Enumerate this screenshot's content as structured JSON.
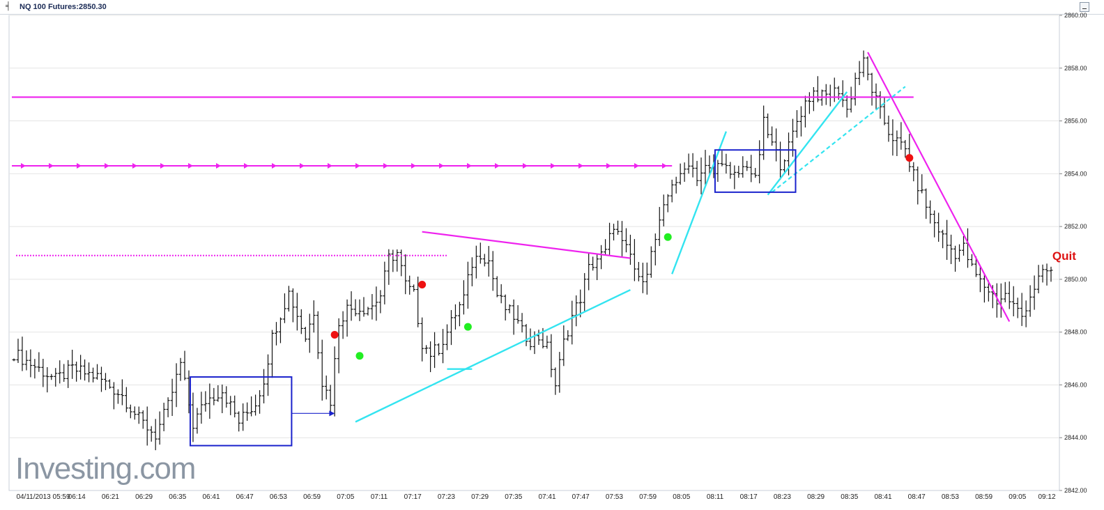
{
  "header": {
    "title": "NQ 100 Futures:2850.30"
  },
  "watermark": "Investing.com",
  "chart_data": {
    "type": "ohlc-bar",
    "title": "NQ 100 Futures:2850.30",
    "x_tick_labels": [
      "04/11/2013 05:59",
      "06:14",
      "06:21",
      "06:29",
      "06:35",
      "06:41",
      "06:47",
      "06:53",
      "06:59",
      "07:05",
      "07:11",
      "07:17",
      "07:23",
      "07:29",
      "07:35",
      "07:41",
      "07:47",
      "07:53",
      "07:59",
      "08:05",
      "08:11",
      "08:17",
      "08:23",
      "08:29",
      "08:35",
      "08:41",
      "08:47",
      "08:53",
      "08:59",
      "09:05",
      "09:12"
    ],
    "y_ticks": [
      2842,
      2844,
      2846,
      2848,
      2850,
      2852,
      2854,
      2856,
      2858,
      2860
    ],
    "y_tick_labels": [
      "2842.00",
      "2844.00",
      "2846.00",
      "2848.00",
      "2850.00",
      "2852.00",
      "2854.00",
      "2856.00",
      "2858.00",
      "2860.00"
    ],
    "ylim": [
      2842,
      2860
    ],
    "bar_count": 250,
    "grid": "horizontal",
    "anchors": [
      [
        0,
        2847.2
      ],
      [
        4,
        2846.8
      ],
      [
        10,
        2846.2
      ],
      [
        14,
        2846.6
      ],
      [
        20,
        2846.3
      ],
      [
        26,
        2845.6
      ],
      [
        30,
        2844.7
      ],
      [
        34,
        2844.1
      ],
      [
        37,
        2845.2
      ],
      [
        40,
        2846.8
      ],
      [
        43,
        2844.5
      ],
      [
        46,
        2845.4
      ],
      [
        50,
        2845.8
      ],
      [
        54,
        2844.6
      ],
      [
        58,
        2845.3
      ],
      [
        60,
        2846.2
      ],
      [
        62,
        2847.8
      ],
      [
        64,
        2848.7
      ],
      [
        66,
        2849.5
      ],
      [
        70,
        2847.8
      ],
      [
        72,
        2848.8
      ],
      [
        74,
        2846.1
      ],
      [
        76,
        2845.4
      ],
      [
        78,
        2848.4
      ],
      [
        80,
        2848.9
      ],
      [
        84,
        2848.9
      ],
      [
        86,
        2849.0
      ],
      [
        88,
        2849.4
      ],
      [
        90,
        2850.8
      ],
      [
        92,
        2851.0
      ],
      [
        94,
        2849.8
      ],
      [
        96,
        2849.4
      ],
      [
        98,
        2847.6
      ],
      [
        100,
        2847.2
      ],
      [
        102,
        2847.4
      ],
      [
        104,
        2848.0
      ],
      [
        106,
        2848.7
      ],
      [
        108,
        2849.3
      ],
      [
        110,
        2850.6
      ],
      [
        112,
        2851.0
      ],
      [
        114,
        2850.7
      ],
      [
        116,
        2849.4
      ],
      [
        118,
        2848.9
      ],
      [
        120,
        2848.6
      ],
      [
        122,
        2848.0
      ],
      [
        124,
        2847.7
      ],
      [
        126,
        2847.8
      ],
      [
        128,
        2847.4
      ],
      [
        130,
        2846.0
      ],
      [
        132,
        2847.6
      ],
      [
        134,
        2848.6
      ],
      [
        136,
        2849.3
      ],
      [
        138,
        2850.4
      ],
      [
        140,
        2850.8
      ],
      [
        142,
        2851.0
      ],
      [
        144,
        2852.1
      ],
      [
        146,
        2851.3
      ],
      [
        148,
        2850.9
      ],
      [
        150,
        2849.9
      ],
      [
        152,
        2850.4
      ],
      [
        154,
        2851.5
      ],
      [
        156,
        2852.6
      ],
      [
        158,
        2853.7
      ],
      [
        160,
        2853.8
      ],
      [
        162,
        2854.5
      ],
      [
        164,
        2853.9
      ],
      [
        166,
        2854.2
      ],
      [
        168,
        2854.0
      ],
      [
        170,
        2854.6
      ],
      [
        172,
        2853.8
      ],
      [
        174,
        2854.0
      ],
      [
        176,
        2854.4
      ],
      [
        178,
        2853.7
      ],
      [
        180,
        2855.9
      ],
      [
        182,
        2855.1
      ],
      [
        184,
        2854.4
      ],
      [
        186,
        2855.0
      ],
      [
        188,
        2856.0
      ],
      [
        190,
        2856.7
      ],
      [
        192,
        2857.1
      ],
      [
        194,
        2856.9
      ],
      [
        196,
        2857.0
      ],
      [
        198,
        2857.2
      ],
      [
        200,
        2856.4
      ],
      [
        202,
        2857.6
      ],
      [
        204,
        2858.2
      ],
      [
        206,
        2857.2
      ],
      [
        208,
        2856.3
      ],
      [
        210,
        2855.6
      ],
      [
        212,
        2855.2
      ],
      [
        214,
        2854.9
      ],
      [
        216,
        2853.9
      ],
      [
        218,
        2853.2
      ],
      [
        220,
        2852.4
      ],
      [
        222,
        2851.9
      ],
      [
        224,
        2851.3
      ],
      [
        226,
        2851.0
      ],
      [
        228,
        2851.2
      ],
      [
        230,
        2850.4
      ],
      [
        232,
        2849.9
      ],
      [
        234,
        2849.6
      ],
      [
        236,
        2849.2
      ],
      [
        238,
        2849.4
      ],
      [
        240,
        2849.0
      ],
      [
        242,
        2848.6
      ],
      [
        244,
        2849.4
      ],
      [
        246,
        2850.0
      ],
      [
        248,
        2850.3
      ],
      [
        249,
        2850.3
      ]
    ],
    "annotations": {
      "resistance_line": {
        "y": 2856.9,
        "x_range": [
          0,
          216
        ]
      },
      "arrow_line": {
        "y": 2854.3,
        "x_range": [
          0,
          158
        ]
      },
      "dotted_line": {
        "y": 2850.9,
        "x_range": [
          0,
          104
        ]
      },
      "consolidation_boxes": [
        {
          "x_range": [
            43,
            66
          ],
          "y_range": [
            2843.7,
            2846.3
          ]
        },
        {
          "x_range": [
            169,
            187
          ],
          "y_range": [
            2853.3,
            2854.9
          ]
        }
      ],
      "trendlines_magenta": [
        {
          "from": [
            98,
            2851.8
          ],
          "to": [
            148,
            2850.8
          ]
        },
        {
          "from": [
            205,
            2858.6
          ],
          "to": [
            239,
            2848.4
          ]
        }
      ],
      "trendlines_cyan": [
        {
          "from": [
            82,
            2844.6
          ],
          "to": [
            148,
            2849.6
          ]
        },
        {
          "from": [
            158,
            2850.2
          ],
          "to": [
            171,
            2855.6
          ]
        },
        {
          "from": [
            181,
            2853.2
          ],
          "to": [
            200,
            2857.1
          ]
        },
        {
          "from": [
            104,
            2846.6
          ],
          "to": [
            110,
            2846.6
          ]
        }
      ],
      "trendlines_cyan_dashed": [
        {
          "from": [
            182,
            2853.3
          ],
          "to": [
            214,
            2857.3
          ]
        }
      ],
      "signal_dots": [
        {
          "x": 77,
          "y": 2847.9,
          "color": "#ee1111"
        },
        {
          "x": 83,
          "y": 2847.1,
          "color": "#22ee22"
        },
        {
          "x": 98,
          "y": 2849.8,
          "color": "#ee1111"
        },
        {
          "x": 109,
          "y": 2848.2,
          "color": "#22ee22"
        },
        {
          "x": 157,
          "y": 2851.6,
          "color": "#22ee22"
        },
        {
          "x": 215,
          "y": 2854.6,
          "color": "#ee1111"
        }
      ],
      "label_quit": {
        "text": "Quit",
        "x": 254,
        "y": 2850.9,
        "color": "#dd1111"
      }
    },
    "colors": {
      "bars": "#111111",
      "magenta": "#ee22ee",
      "cyan": "#33e4f0",
      "box": "#1a22cc",
      "grid": "#e4e4e4"
    }
  }
}
